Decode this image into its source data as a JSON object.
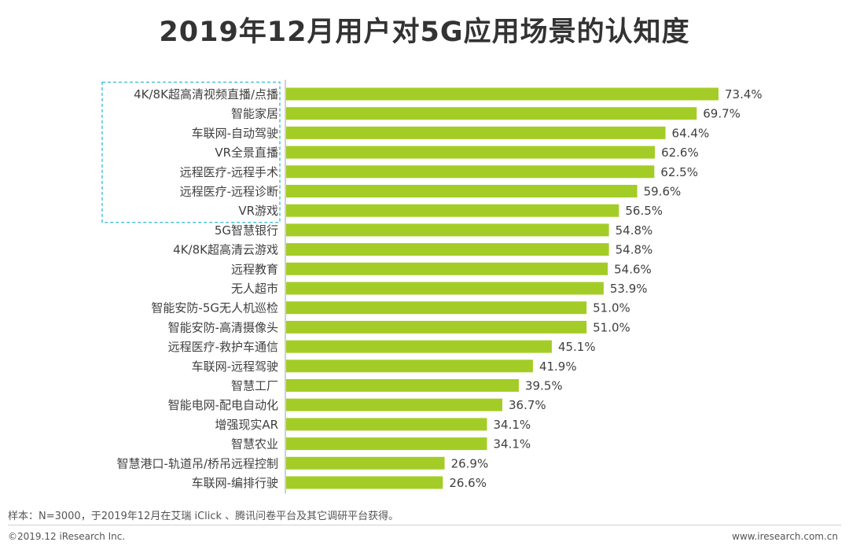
{
  "title": "2019年12月用户对5G应用场景的认知度",
  "footer": {
    "note": "样本：N=3000，于2019年12月在艾瑞 iClick 、腾讯问卷平台及其它调研平台获得。",
    "copyright": "©2019.12 iResearch Inc.",
    "website": "www.iresearch.com.cn"
  },
  "colors": {
    "bar": "#a3cd26",
    "highlight_box": "#4fc1d6",
    "axis": "#a0a0a0"
  },
  "chart_data": {
    "type": "bar",
    "orientation": "horizontal",
    "title": "2019年12月用户对5G应用场景的认知度",
    "value_suffix": "%",
    "categories": [
      "4K/8K超高清视频直播/点播",
      "智能家居",
      "车联网-自动驾驶",
      "VR全景直播",
      "远程医疗-远程手术",
      "远程医疗-远程诊断",
      "VR游戏",
      "5G智慧银行",
      "4K/8K超高清云游戏",
      "远程教育",
      "无人超市",
      "智能安防-5G无人机巡检",
      "智能安防-高清摄像头",
      "远程医疗-救护车通信",
      "车联网-远程驾驶",
      "智慧工厂",
      "智能电网-配电自动化",
      "增强现实AR",
      "智慧农业",
      "智慧港口-轨道吊/桥吊远程控制",
      "车联网-编排行驶"
    ],
    "values": [
      73.4,
      69.7,
      64.4,
      62.6,
      62.5,
      59.6,
      56.5,
      54.8,
      54.8,
      54.6,
      53.9,
      51.0,
      51.0,
      45.1,
      41.9,
      39.5,
      36.7,
      34.1,
      34.1,
      26.9,
      26.6
    ],
    "xlim": [
      0,
      73.4
    ],
    "highlighted_categories": 7
  }
}
